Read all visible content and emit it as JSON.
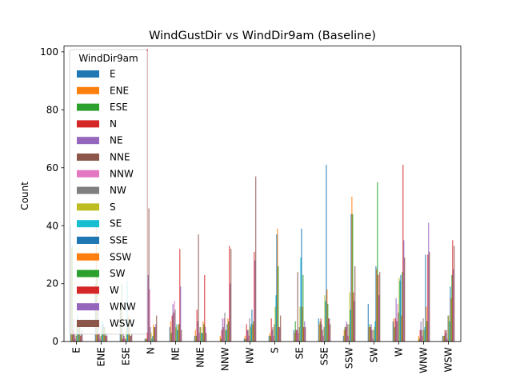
{
  "chart_data": {
    "type": "bar",
    "title": "WindGustDir vs WindDir9am (Baseline)",
    "xlabel": "",
    "ylabel": "Count",
    "ylim": [
      0,
      102
    ],
    "yticks": [
      0,
      20,
      40,
      60,
      80,
      100
    ],
    "grid": false,
    "legend": {
      "title": "WindDir9am",
      "placement": "top-left"
    },
    "categories": [
      "E",
      "ENE",
      "ESE",
      "N",
      "NE",
      "NNE",
      "NNW",
      "NW",
      "S",
      "SE",
      "SSE",
      "SSW",
      "SW",
      "W",
      "WNW",
      "WSW"
    ],
    "series": [
      {
        "name": "E",
        "color": "#1f77b4",
        "values": [
          40,
          20,
          12,
          1,
          5,
          2,
          0,
          1,
          2,
          4,
          8,
          2,
          13,
          7,
          0,
          2
        ]
      },
      {
        "name": "ENE",
        "color": "#ff7f0e",
        "values": [
          32,
          40,
          11,
          1,
          7,
          4,
          2,
          2,
          3,
          3,
          6,
          4,
          5,
          8,
          2,
          2
        ]
      },
      {
        "name": "ESE",
        "color": "#2ca02c",
        "values": [
          33,
          24,
          20,
          1,
          3,
          2,
          1,
          1,
          2,
          7,
          7,
          5,
          6,
          5,
          1,
          2
        ]
      },
      {
        "name": "N",
        "color": "#d62728",
        "values": [
          4,
          3,
          1,
          101,
          9,
          11,
          4,
          6,
          8,
          4,
          8,
          5,
          5,
          8,
          4,
          4
        ]
      },
      {
        "name": "NE",
        "color": "#9467bd",
        "values": [
          8,
          12,
          3,
          23,
          13,
          7,
          8,
          4,
          4,
          4,
          6,
          7,
          6,
          15,
          7,
          3
        ]
      },
      {
        "name": "NNE",
        "color": "#8c564b",
        "values": [
          3,
          3,
          2,
          46,
          10,
          37,
          5,
          4,
          5,
          24,
          4,
          6,
          4,
          7,
          4,
          4
        ]
      },
      {
        "name": "NNW",
        "color": "#e377c2",
        "values": [
          1,
          1,
          1,
          18,
          14,
          3,
          8,
          2,
          2,
          3,
          2,
          2,
          1,
          13,
          2,
          1
        ]
      },
      {
        "name": "NW",
        "color": "#7f7f7f",
        "values": [
          2,
          2,
          1,
          5,
          11,
          5,
          10,
          8,
          6,
          5,
          5,
          6,
          4,
          10,
          8,
          9
        ]
      },
      {
        "name": "S",
        "color": "#bcbd22",
        "values": [
          6,
          5,
          5,
          3,
          5,
          5,
          4,
          5,
          12,
          12,
          16,
          17,
          5,
          22,
          4,
          9
        ]
      },
      {
        "name": "SE",
        "color": "#17becf",
        "values": [
          9,
          7,
          21,
          1,
          6,
          3,
          4,
          6,
          16,
          29,
          14,
          11,
          7,
          21,
          5,
          7
        ]
      },
      {
        "name": "SSE",
        "color": "#1f77b4",
        "values": [
          7,
          6,
          8,
          2,
          4,
          3,
          6,
          11,
          37,
          39,
          61,
          44,
          26,
          23,
          30,
          19
        ]
      },
      {
        "name": "SSW",
        "color": "#ff7f0e",
        "values": [
          7,
          5,
          9,
          6,
          6,
          7,
          8,
          6,
          39,
          12,
          18,
          50,
          25,
          9,
          12,
          15
        ]
      },
      {
        "name": "SW",
        "color": "#2ca02c",
        "values": [
          7,
          5,
          6,
          5,
          6,
          6,
          7,
          7,
          26,
          23,
          13,
          44,
          55,
          24,
          7,
          23
        ]
      },
      {
        "name": "W",
        "color": "#d62728",
        "values": [
          2,
          2,
          2,
          5,
          32,
          23,
          33,
          31,
          5,
          5,
          8,
          17,
          23,
          61,
          30,
          35
        ]
      },
      {
        "name": "WNW",
        "color": "#9467bd",
        "values": [
          3,
          3,
          2,
          6,
          19,
          5,
          20,
          28,
          5,
          7,
          8,
          14,
          16,
          35,
          41,
          25
        ]
      },
      {
        "name": "WSW",
        "color": "#8c564b",
        "values": [
          4,
          2,
          3,
          9,
          4,
          3,
          32,
          57,
          9,
          5,
          6,
          26,
          24,
          29,
          31,
          33
        ]
      }
    ]
  }
}
